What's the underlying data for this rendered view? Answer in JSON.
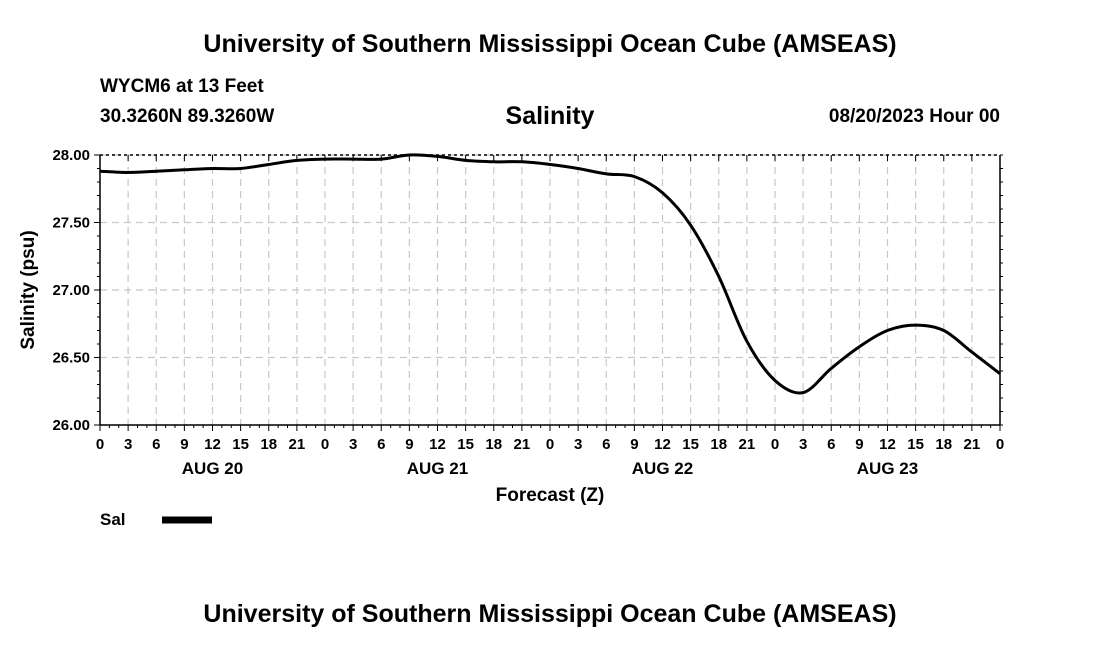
{
  "page": {
    "title_top": "University of Southern Mississippi Ocean Cube (AMSEAS)",
    "title_bottom": "University of Southern Mississippi Ocean Cube (AMSEAS)",
    "station": "WYCM6 at 13 Feet",
    "coordinates": "30.3260N  89.3260W",
    "datetime": "08/20/2023 Hour 00"
  },
  "chart_data": {
    "type": "line",
    "title": "Salinity",
    "xlabel": "Forecast (Z)",
    "ylabel": "Salinity (psu)",
    "ylim": [
      26.0,
      28.0
    ],
    "yticks": [
      "26.00",
      "26.50",
      "27.00",
      "27.50",
      "28.00"
    ],
    "xlim": [
      0,
      96
    ],
    "x_ticks_hours": [
      0,
      3,
      6,
      9,
      12,
      15,
      18,
      21,
      24,
      27,
      30,
      33,
      36,
      39,
      42,
      45,
      48,
      51,
      54,
      57,
      60,
      63,
      66,
      69,
      72,
      75,
      78,
      81,
      84,
      87,
      90,
      93,
      96
    ],
    "x_tick_labels": [
      "0",
      "3",
      "6",
      "9",
      "12",
      "15",
      "18",
      "21",
      "0",
      "3",
      "6",
      "9",
      "12",
      "15",
      "18",
      "21",
      "0",
      "3",
      "6",
      "9",
      "12",
      "15",
      "18",
      "21",
      "0",
      "3",
      "6",
      "9",
      "12",
      "15",
      "18",
      "21",
      "0"
    ],
    "day_labels": [
      {
        "hour": 12,
        "label": "AUG 20"
      },
      {
        "hour": 36,
        "label": "AUG 21"
      },
      {
        "hour": 60,
        "label": "AUG 22"
      },
      {
        "hour": 84,
        "label": "AUG 23"
      }
    ],
    "grid": true,
    "series": [
      {
        "name": "Sal",
        "color": "#000000",
        "x": [
          0,
          3,
          6,
          9,
          12,
          15,
          18,
          21,
          24,
          27,
          30,
          33,
          36,
          39,
          42,
          45,
          48,
          51,
          54,
          57,
          60,
          63,
          66,
          69,
          72,
          75,
          78,
          81,
          84,
          87,
          90,
          93,
          96
        ],
        "values": [
          27.88,
          27.87,
          27.88,
          27.89,
          27.9,
          27.9,
          27.93,
          27.96,
          27.97,
          27.97,
          27.97,
          28.0,
          27.99,
          27.96,
          27.95,
          27.95,
          27.93,
          27.9,
          27.86,
          27.84,
          27.72,
          27.48,
          27.1,
          26.62,
          26.33,
          26.24,
          26.42,
          26.58,
          26.7,
          26.74,
          26.7,
          26.54,
          26.38
        ]
      }
    ],
    "legend": {
      "label": "Sal",
      "position": "bottom-left"
    }
  }
}
